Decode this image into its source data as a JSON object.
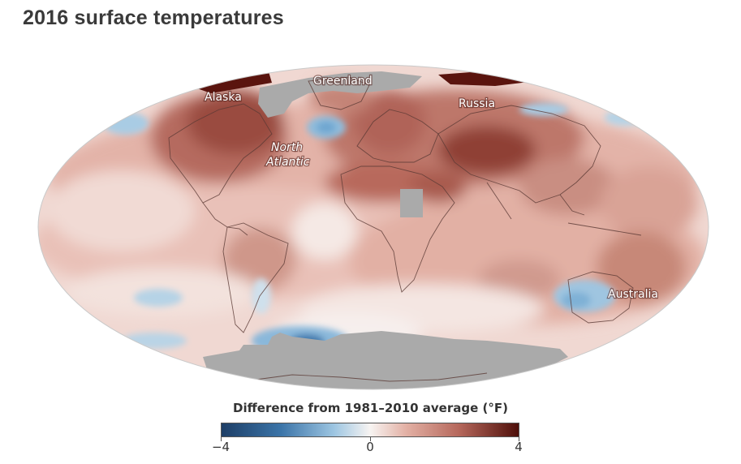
{
  "title": "2016 surface temperatures",
  "map": {
    "labels": {
      "alaska": "Alaska",
      "greenland": "Greenland",
      "russia": "Russia",
      "north_atlantic_1": "North",
      "north_atlantic_2": "Atlantic",
      "australia": "Australia"
    },
    "projection": "mollweide",
    "colors": {
      "warm_strong": "#5a140e",
      "warm": "#b5675b",
      "warm_light": "#e6bcb2",
      "neutral": "#f7f2ef",
      "cool": "#7fb3d6",
      "cool_strong": "#1d3e66",
      "no_data": "#aaaaaa",
      "coastline": "#5a3a35"
    }
  },
  "legend": {
    "title": "Difference from 1981–2010 average (°F)",
    "min_label": "−4",
    "mid_label": "0",
    "max_label": "4",
    "range": [
      -4,
      4
    ]
  }
}
